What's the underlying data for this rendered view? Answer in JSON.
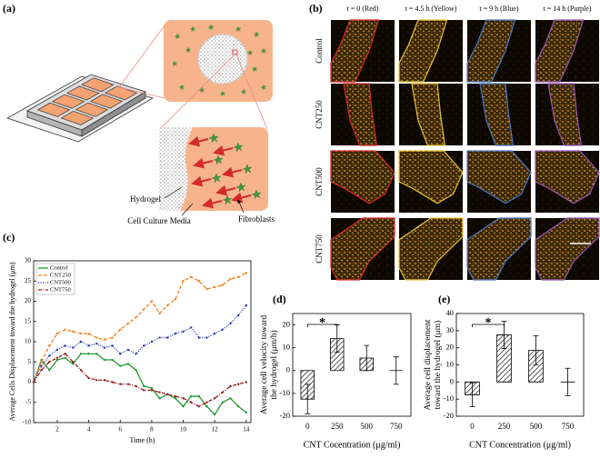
{
  "schematic": {
    "panel_label": "(a)",
    "labels": [
      "Hydrogel",
      "Cell Culture Media",
      "Fibroblasts"
    ]
  },
  "micrographs": {
    "panel_label": "(b)",
    "columns": [
      "t = 0 (Red)",
      "t = 4.5 h (Yellow)",
      "t = 9 h (Blue)",
      "t = 14 h (Purple)"
    ],
    "outline_colors": [
      "#d7262b",
      "#e8c23a",
      "#4a78c8",
      "#9a55b8"
    ],
    "rows": [
      "Control",
      "CNT250",
      "CNT500",
      "CNT750"
    ]
  },
  "chart_data": [
    {
      "type": "line",
      "panel_label": "(c)",
      "xlabel": "Time (h)",
      "ylabel": "Average Cells Displacement toward the hydrogel (μm)",
      "x": [
        0.5,
        1,
        1.5,
        2,
        2.5,
        3,
        3.5,
        4,
        4.5,
        5,
        5.5,
        6,
        6.5,
        7,
        7.5,
        8,
        8.5,
        9,
        9.5,
        10,
        10.5,
        11,
        11.5,
        12,
        12.5,
        13,
        13.5,
        14
      ],
      "xlim": [
        0.5,
        14.3
      ],
      "xticks": [
        2,
        4,
        6,
        8,
        10,
        12,
        14
      ],
      "ylim": [
        -10,
        30
      ],
      "yticks": [
        -10,
        -5,
        0,
        5,
        10,
        15,
        20,
        25,
        30
      ],
      "legend": "upper left",
      "series": [
        {
          "name": "Control",
          "color": "#1f9a2e",
          "dash": "solid",
          "values": [
            0,
            5.5,
            3,
            5.5,
            6,
            4.5,
            7,
            7,
            7,
            5.5,
            5.5,
            4,
            4.5,
            3,
            -1,
            -1.5,
            -4,
            -3,
            -4,
            -6,
            -3.5,
            -3.5,
            -6,
            -8,
            -5,
            -4,
            -6,
            -7.5
          ]
        },
        {
          "name": "CNT250",
          "color": "#f0821e",
          "dash": "dashed",
          "values": [
            0,
            5,
            9,
            12,
            13,
            12.5,
            12,
            12,
            11,
            10.5,
            11,
            13,
            14.5,
            16,
            18,
            20,
            17,
            19,
            20.5,
            25,
            26,
            25,
            23,
            23.5,
            24,
            25.5,
            26,
            27
          ]
        },
        {
          "name": "CNT500",
          "color": "#2236b8",
          "dash": "dotted",
          "values": [
            0,
            4,
            6.5,
            8,
            9,
            8.5,
            10,
            9,
            9.5,
            8.5,
            9,
            7,
            8,
            7,
            9,
            10,
            11,
            11,
            12,
            12.5,
            13.5,
            11,
            11,
            12,
            13,
            14.5,
            16.5,
            19
          ]
        },
        {
          "name": "CNT750",
          "color": "#9b1c1c",
          "dash": "dashdot",
          "values": [
            0,
            3,
            5,
            6,
            7,
            5,
            3,
            1,
            0.5,
            0.5,
            0,
            -0.5,
            -0.5,
            -1,
            -2,
            -2,
            -2.5,
            -3,
            -3.5,
            -4,
            -5,
            -6,
            -5,
            -4,
            -2.5,
            -1,
            -0.5,
            0
          ]
        }
      ]
    },
    {
      "type": "bar",
      "panel_label": "(d)",
      "xlabel": "CNT Cocentration (μg/ml)",
      "ylabel": [
        "Average cell velocity toward",
        "the hydrogel (μm/h)"
      ],
      "categories": [
        "0",
        "250",
        "500",
        "750"
      ],
      "values": [
        -12.5,
        14,
        5.5,
        0
      ],
      "errors": [
        6.5,
        6,
        5.5,
        6
      ],
      "hatch": true,
      "ylim": [
        -20,
        25
      ],
      "yticks": [
        -20,
        -10,
        0,
        10,
        20
      ],
      "annotation": "*"
    },
    {
      "type": "bar",
      "panel_label": "(e)",
      "xlabel": "CNT Concentration (μg/ml)",
      "ylabel": [
        "Average cell displacement",
        "toward the hydrogel (μm)"
      ],
      "categories": [
        "0",
        "250",
        "500",
        "750"
      ],
      "values": [
        -7.5,
        27.5,
        18.5,
        0
      ],
      "errors": [
        7,
        8,
        8.5,
        8
      ],
      "hatch": true,
      "ylim": [
        -20,
        40
      ],
      "yticks": [
        -20,
        -10,
        0,
        10,
        20,
        30,
        40
      ],
      "annotation": "*"
    }
  ]
}
